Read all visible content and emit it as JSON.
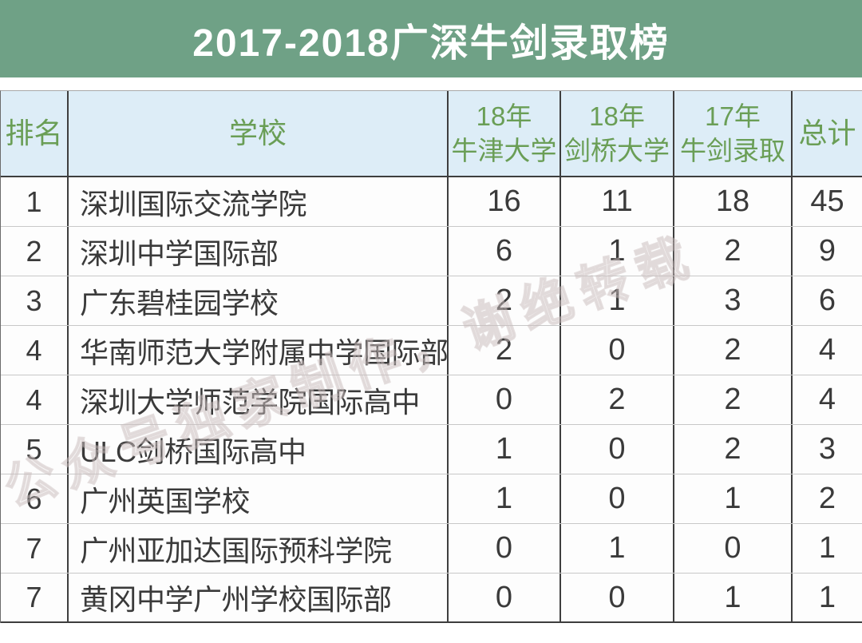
{
  "title": "2017-2018广深牛剑录取榜",
  "watermark": {
    "text": "公众号独家制作，谢绝转载"
  },
  "colors": {
    "banner_green": "#6FA186",
    "header_bg": "#DDEDF7",
    "header_text_green": "#6A9E56",
    "body_text": "#3A3A3A",
    "dark_border": "#3E3E3E",
    "light_border": "#C8C8C8",
    "watermark": "#D8CBCB"
  },
  "table": {
    "columns": [
      {
        "line1": "排名"
      },
      {
        "line1": "学校"
      },
      {
        "line1": "18年",
        "line2": "牛津大学"
      },
      {
        "line1": "18年",
        "line2": "剑桥大学"
      },
      {
        "line1": "17年",
        "line2": "牛剑录取"
      },
      {
        "line1": "总计"
      }
    ],
    "rows": [
      {
        "rank": "1",
        "school": "深圳国际交流学院",
        "oxford18": "16",
        "cambridge18": "11",
        "oxbridge17": "18",
        "total": "45"
      },
      {
        "rank": "2",
        "school": "深圳中学国际部",
        "oxford18": "6",
        "cambridge18": "1",
        "oxbridge17": "2",
        "total": "9"
      },
      {
        "rank": "3",
        "school": "广东碧桂园学校",
        "oxford18": "2",
        "cambridge18": "1",
        "oxbridge17": "3",
        "total": "6"
      },
      {
        "rank": "4",
        "school": "华南师范大学附属中学国际部",
        "oxford18": "2",
        "cambridge18": "0",
        "oxbridge17": "2",
        "total": "4"
      },
      {
        "rank": "4",
        "school": "深圳大学师范学院国际高中",
        "oxford18": "0",
        "cambridge18": "2",
        "oxbridge17": "2",
        "total": "4"
      },
      {
        "rank": "5",
        "school": "ULC剑桥国际高中",
        "oxford18": "1",
        "cambridge18": "0",
        "oxbridge17": "2",
        "total": "3"
      },
      {
        "rank": "6",
        "school": "广州英国学校",
        "oxford18": "1",
        "cambridge18": "0",
        "oxbridge17": "1",
        "total": "2"
      },
      {
        "rank": "7",
        "school": "广州亚加达国际预科学院",
        "oxford18": "0",
        "cambridge18": "1",
        "oxbridge17": "0",
        "total": "1"
      },
      {
        "rank": "7",
        "school": "黄冈中学广州学校国际部",
        "oxford18": "0",
        "cambridge18": "0",
        "oxbridge17": "1",
        "total": "1"
      }
    ]
  },
  "chart_data": {
    "type": "table",
    "title": "2017-2018广深牛剑录取榜",
    "columns": [
      "排名",
      "学校",
      "18年牛津大学",
      "18年剑桥大学",
      "17年牛剑录取",
      "总计"
    ],
    "rows": [
      [
        1,
        "深圳国际交流学院",
        16,
        11,
        18,
        45
      ],
      [
        2,
        "深圳中学国际部",
        6,
        1,
        2,
        9
      ],
      [
        3,
        "广东碧桂园学校",
        2,
        1,
        3,
        6
      ],
      [
        4,
        "华南师范大学附属中学国际部",
        2,
        0,
        2,
        4
      ],
      [
        4,
        "深圳大学师范学院国际高中",
        0,
        2,
        2,
        4
      ],
      [
        5,
        "ULC剑桥国际高中",
        1,
        0,
        2,
        3
      ],
      [
        6,
        "广州英国学校",
        1,
        0,
        1,
        2
      ],
      [
        7,
        "广州亚加达国际预科学院",
        0,
        1,
        0,
        1
      ],
      [
        7,
        "黄冈中学广州学校国际部",
        0,
        0,
        1,
        1
      ]
    ]
  }
}
